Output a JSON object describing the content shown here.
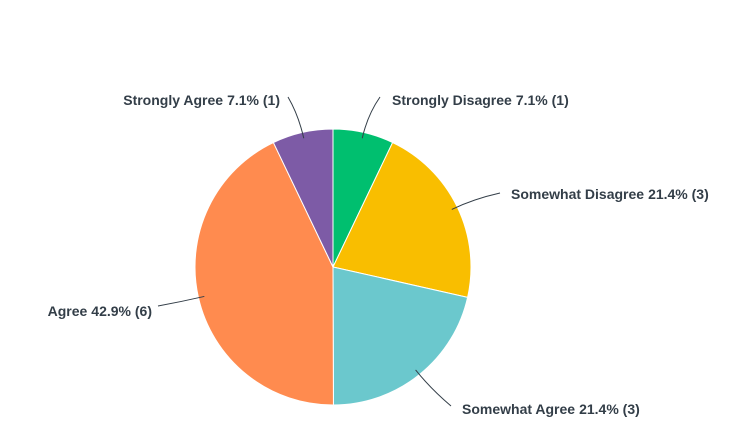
{
  "chart_data": {
    "type": "pie",
    "categories": [
      "Strongly Disagree",
      "Somewhat Disagree",
      "Somewhat Agree",
      "Agree",
      "Strongly Agree"
    ],
    "values": [
      7.1,
      21.4,
      21.4,
      42.9,
      7.1
    ],
    "value_labels": [
      "7.1% (1)",
      "21.4% (3)",
      "21.4% (3)",
      "42.9% (6)",
      "7.1% (1)"
    ],
    "colors": [
      "#00bf6f",
      "#f9be00",
      "#6bc8cd",
      "#ff8b4f",
      "#7d5ba6"
    ]
  }
}
